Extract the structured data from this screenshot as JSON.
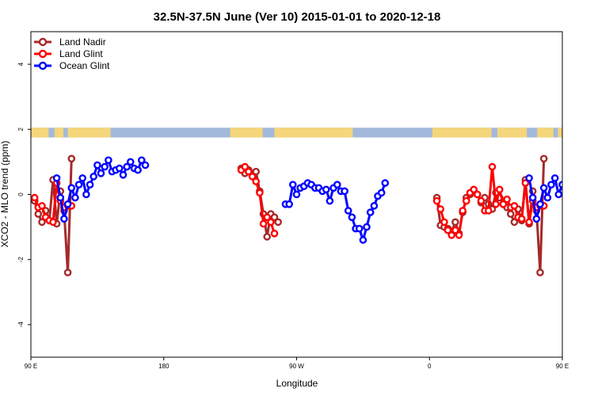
{
  "chart_data": {
    "type": "line",
    "title": "32.5N-37.5N June (Ver 10)   2015-01-01 to 2020-12-18",
    "xlabel": "Longitude",
    "ylabel": "XCO2 - MLO trend (ppm)",
    "xlim": [
      90,
      450
    ],
    "ylim": [
      -5,
      5
    ],
    "x_ticks": [
      {
        "value": 90,
        "label": "90 E"
      },
      {
        "value": 180,
        "label": "180"
      },
      {
        "value": 270,
        "label": "90 W"
      },
      {
        "value": 360,
        "label": "0"
      },
      {
        "value": 450,
        "label": "90 E"
      },
      {
        "value": 540,
        "label": "180"
      }
    ],
    "y_ticks": [
      {
        "value": -4,
        "label": "-4"
      },
      {
        "value": -2,
        "label": "-2"
      },
      {
        "value": 0,
        "label": "0"
      },
      {
        "value": 2,
        "label": "2"
      },
      {
        "value": 4,
        "label": "4"
      }
    ],
    "grid": false,
    "legend_position": "top-left",
    "land_band": {
      "ymin": 1.75,
      "ymax": 2.05,
      "land_color": "#f6d67a",
      "ocean_color": "#a3b9dc"
    },
    "series": [
      {
        "name": "Land Nadir",
        "color": "#a52a2a",
        "segments": [
          [
            [
              92.5,
              -0.2
            ],
            [
              95,
              -0.6
            ],
            [
              97.5,
              -0.85
            ],
            [
              100,
              -0.5
            ],
            [
              102.5,
              -0.8
            ],
            [
              105,
              0.45
            ],
            [
              107.5,
              -0.9
            ],
            [
              110,
              0.1
            ],
            [
              112.5,
              -0.5
            ],
            [
              115,
              -2.4
            ],
            [
              117.5,
              1.1
            ]
          ],
          [
            [
              232.5,
              0.8
            ],
            [
              235,
              0.65
            ],
            [
              237.5,
              0.75
            ],
            [
              240,
              0.6
            ],
            [
              242.5,
              0.7
            ],
            [
              245,
              0.1
            ],
            [
              247.5,
              -0.6
            ],
            [
              250,
              -1.3
            ],
            [
              252.5,
              -0.6
            ],
            [
              255,
              -0.7
            ],
            [
              257.5,
              -0.85
            ]
          ],
          [
            [
              365,
              -0.1
            ],
            [
              367.5,
              -0.95
            ],
            [
              370,
              -1.0
            ],
            [
              372.5,
              -1.05
            ],
            [
              375,
              -1.15
            ],
            [
              377.5,
              -0.85
            ],
            [
              380,
              -1.2
            ],
            [
              382.5,
              -0.55
            ],
            [
              385,
              -0.1
            ],
            [
              387.5,
              0.0
            ],
            [
              390,
              0.1
            ],
            [
              392.5,
              0.0
            ],
            [
              395,
              -0.25
            ],
            [
              397.5,
              -0.1
            ],
            [
              400,
              -0.3
            ],
            [
              402.5,
              -0.45
            ],
            [
              405,
              0.05
            ],
            [
              407.5,
              -0.1
            ],
            [
              410,
              -0.3
            ],
            [
              412.5,
              -0.4
            ],
            [
              415,
              -0.6
            ],
            [
              417.5,
              -0.85
            ],
            [
              420,
              -0.45
            ],
            [
              422.5,
              -0.8
            ],
            [
              425,
              0.45
            ],
            [
              427.5,
              -0.9
            ],
            [
              430,
              0.1
            ],
            [
              432.5,
              -0.5
            ],
            [
              435,
              -2.4
            ],
            [
              437.5,
              1.1
            ]
          ]
        ]
      },
      {
        "name": "Land Glint",
        "color": "#ff0000",
        "segments": [
          [
            [
              92.5,
              -0.1
            ],
            [
              95,
              -0.4
            ],
            [
              97.5,
              -0.35
            ],
            [
              100,
              -0.7
            ],
            [
              102.5,
              -0.8
            ],
            [
              105,
              -0.85
            ],
            [
              107.5,
              0.35
            ],
            [
              110,
              -0.2
            ],
            [
              112.5,
              -0.4
            ],
            [
              115,
              -0.35
            ],
            [
              117.5,
              -0.35
            ]
          ],
          [
            [
              232.5,
              0.75
            ],
            [
              235,
              0.85
            ],
            [
              237.5,
              0.7
            ],
            [
              240,
              0.55
            ],
            [
              242.5,
              0.4
            ],
            [
              245,
              0.05
            ],
            [
              247.5,
              -0.9
            ],
            [
              250,
              -0.7
            ],
            [
              252.5,
              -0.85
            ],
            [
              255,
              -1.2
            ]
          ],
          [
            [
              365,
              -0.2
            ],
            [
              367.5,
              -0.45
            ],
            [
              370,
              -0.85
            ],
            [
              372.5,
              -1.1
            ],
            [
              375,
              -1.25
            ],
            [
              377.5,
              -1.1
            ],
            [
              380,
              -1.25
            ],
            [
              382.5,
              -0.5
            ],
            [
              385,
              -0.2
            ],
            [
              387.5,
              0.05
            ],
            [
              390,
              0.15
            ],
            [
              392.5,
              0.0
            ],
            [
              395,
              -0.2
            ],
            [
              397.5,
              -0.5
            ],
            [
              400,
              -0.5
            ],
            [
              402.5,
              0.85
            ],
            [
              405,
              -0.3
            ],
            [
              407.5,
              0.15
            ],
            [
              410,
              -0.3
            ],
            [
              412.5,
              -0.15
            ],
            [
              415,
              -0.4
            ],
            [
              417.5,
              -0.35
            ],
            [
              420,
              -0.7
            ],
            [
              422.5,
              -0.75
            ],
            [
              425,
              0.35
            ],
            [
              427.5,
              -0.85
            ],
            [
              430,
              -0.2
            ],
            [
              432.5,
              -0.4
            ],
            [
              435,
              -0.35
            ],
            [
              437.5,
              -0.35
            ]
          ]
        ]
      },
      {
        "name": "Ocean Glint",
        "color": "#0000ff",
        "segments": [
          [
            [
              107.5,
              0.5
            ],
            [
              110,
              -0.1
            ],
            [
              112.5,
              -0.75
            ],
            [
              115,
              -0.3
            ],
            [
              117.5,
              0.2
            ],
            [
              120,
              -0.1
            ],
            [
              122.5,
              0.3
            ],
            [
              125,
              0.5
            ],
            [
              127.5,
              0.0
            ],
            [
              130,
              0.3
            ],
            [
              132.5,
              0.55
            ],
            [
              135,
              0.9
            ],
            [
              137.5,
              0.65
            ],
            [
              140,
              0.85
            ],
            [
              142.5,
              1.05
            ],
            [
              145,
              0.7
            ],
            [
              147.5,
              0.75
            ],
            [
              150,
              0.8
            ],
            [
              152.5,
              0.6
            ],
            [
              155,
              0.85
            ],
            [
              157.5,
              1.0
            ],
            [
              160,
              0.8
            ],
            [
              162.5,
              0.75
            ],
            [
              165,
              1.05
            ],
            [
              167.5,
              0.9
            ]
          ],
          [
            [
              262.5,
              -0.3
            ],
            [
              265,
              -0.3
            ],
            [
              267.5,
              0.3
            ],
            [
              270,
              0.0
            ],
            [
              272.5,
              0.2
            ],
            [
              275,
              0.25
            ],
            [
              277.5,
              0.35
            ],
            [
              280,
              0.3
            ],
            [
              282.5,
              0.2
            ],
            [
              285,
              0.2
            ],
            [
              287.5,
              0.1
            ],
            [
              290,
              0.15
            ],
            [
              292.5,
              -0.2
            ],
            [
              295,
              0.2
            ],
            [
              297.5,
              0.3
            ],
            [
              300,
              0.1
            ],
            [
              302.5,
              0.1
            ]
          ],
          [
            [
              302.5,
              0.1
            ],
            [
              305,
              -0.5
            ],
            [
              307.5,
              -0.7
            ],
            [
              310,
              -1.05
            ],
            [
              312.5,
              -1.05
            ],
            [
              315,
              -1.4
            ],
            [
              317.5,
              -1.0
            ],
            [
              320,
              -0.55
            ],
            [
              322.5,
              -0.35
            ],
            [
              325,
              -0.05
            ],
            [
              327.5,
              0.05
            ],
            [
              330,
              0.35
            ]
          ],
          [
            [
              427.5,
              0.5
            ],
            [
              430,
              -0.1
            ],
            [
              432.5,
              -0.75
            ],
            [
              435,
              -0.3
            ],
            [
              437.5,
              0.2
            ],
            [
              440,
              -0.1
            ],
            [
              442.5,
              0.3
            ],
            [
              445,
              0.5
            ],
            [
              447.5,
              0.0
            ],
            [
              450,
              0.3
            ],
            [
              452.5,
              0.55
            ],
            [
              455,
              0.9
            ]
          ]
        ]
      }
    ]
  }
}
